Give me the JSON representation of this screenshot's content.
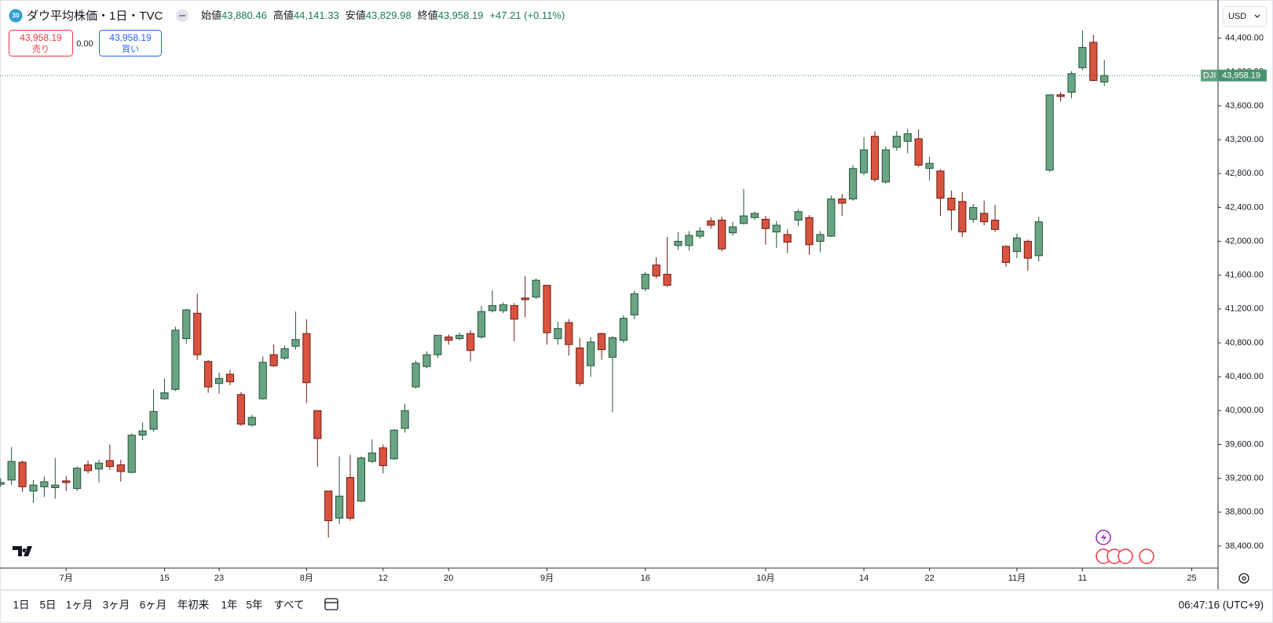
{
  "header": {
    "badge": "30",
    "title": "ダウ平均株価・1日・TVC",
    "ohlc": [
      {
        "label": "始値",
        "value": "43,880.46"
      },
      {
        "label": "高値",
        "value": "44,141.33"
      },
      {
        "label": "安値",
        "value": "43,829.98"
      },
      {
        "label": "終値",
        "value": "43,958.19"
      }
    ],
    "change": "+47.21 (+0.11%)"
  },
  "trade_panel": {
    "sell_price": "43,958.19",
    "sell_label": "売り",
    "spread": "0.00",
    "buy_price": "43,958.19",
    "buy_label": "買い"
  },
  "currency": "USD",
  "toolbar": {
    "ranges": [
      "1日",
      "5日",
      "1ヶ月",
      "3ヶ月",
      "6ヶ月",
      "年初来",
      "1年",
      "5年",
      "すべて"
    ],
    "clock": "06:47:16 (UTC+9)"
  },
  "chart_data": {
    "type": "candlestick",
    "up_color": "#6aa583",
    "down_color": "#d9533f",
    "grid": false,
    "last_price": {
      "symbol": "DJI",
      "value": 43958.19,
      "label": "43,958.19"
    },
    "ylim": [
      38140,
      44850
    ],
    "yticks": [
      {
        "value": 38400,
        "label": "38,400.00"
      },
      {
        "value": 38800,
        "label": "38,800.00"
      },
      {
        "value": 39200,
        "label": "39,200.00"
      },
      {
        "value": 39600,
        "label": "39,600.00"
      },
      {
        "value": 40000,
        "label": "40,000.00"
      },
      {
        "value": 40400,
        "label": "40,400.00"
      },
      {
        "value": 40800,
        "label": "40,800.00"
      },
      {
        "value": 41200,
        "label": "41,200.00"
      },
      {
        "value": 41600,
        "label": "41,600.00"
      },
      {
        "value": 42000,
        "label": "42,000.00"
      },
      {
        "value": 42400,
        "label": "42,400.00"
      },
      {
        "value": 42800,
        "label": "42,800.00"
      },
      {
        "value": 43200,
        "label": "43,200.00"
      },
      {
        "value": 43600,
        "label": "43,600.00"
      },
      {
        "value": 44000,
        "label": "44,000.00"
      },
      {
        "value": 44400,
        "label": "44,400.00"
      }
    ],
    "categories": [
      null,
      null,
      null,
      null,
      null,
      null,
      "7月",
      null,
      null,
      null,
      null,
      null,
      null,
      null,
      null,
      "15",
      null,
      null,
      null,
      null,
      "23",
      null,
      null,
      null,
      null,
      null,
      null,
      null,
      "8月",
      null,
      null,
      null,
      null,
      null,
      null,
      "12",
      null,
      null,
      null,
      null,
      null,
      "20",
      null,
      null,
      null,
      null,
      null,
      null,
      null,
      null,
      "9月",
      null,
      null,
      null,
      null,
      null,
      null,
      null,
      null,
      "16",
      null,
      null,
      null,
      null,
      null,
      null,
      null,
      null,
      null,
      null,
      "10月",
      null,
      null,
      null,
      null,
      null,
      null,
      null,
      null,
      "14",
      null,
      null,
      null,
      null,
      null,
      "22",
      null,
      null,
      null,
      null,
      null,
      null,
      null,
      "11月",
      null,
      null,
      null,
      null,
      null,
      "11",
      null,
      null,
      null,
      null,
      null,
      null,
      null,
      null,
      null,
      "25"
    ],
    "open": [
      39130,
      39180,
      39390,
      39050,
      39100,
      39090,
      39170,
      39080,
      39360,
      39310,
      39410,
      39360,
      39270,
      39710,
      39780,
      40140,
      40250,
      40850,
      41150,
      40580,
      40320,
      40430,
      40190,
      39830,
      40140,
      40660,
      40620,
      40760,
      40910,
      40000,
      39050,
      38730,
      39210,
      38930,
      39400,
      39560,
      39430,
      39790,
      40280,
      40520,
      40660,
      40870,
      40850,
      40910,
      40870,
      41180,
      41180,
      41240,
      41330,
      41340,
      41480,
      40850,
      41040,
      40740,
      40530,
      40910,
      40630,
      40830,
      41130,
      41440,
      41720,
      41610,
      41950,
      41950,
      42060,
      42240,
      42250,
      42100,
      42210,
      42280,
      42260,
      42110,
      42080,
      42250,
      42280,
      42000,
      42060,
      42500,
      42500,
      42810,
      43240,
      42700,
      43110,
      43180,
      43210,
      42860,
      42830,
      42510,
      42470,
      42260,
      42330,
      42250,
      41940,
      41880,
      42000,
      41830,
      42840,
      43730,
      43760,
      44050,
      44350,
      43880.46,
      null,
      null,
      null,
      null,
      null,
      null,
      null,
      null
    ],
    "high": [
      39200,
      39570,
      39410,
      39180,
      39220,
      39440,
      39230,
      39340,
      39410,
      39420,
      39600,
      39420,
      39730,
      39860,
      40250,
      40380,
      40990,
      41200,
      41380,
      40600,
      40450,
      40480,
      40220,
      39950,
      40640,
      40780,
      40770,
      41170,
      41080,
      40000,
      39050,
      39460,
      39480,
      39460,
      39660,
      39600,
      39780,
      40080,
      40590,
      40700,
      40890,
      40900,
      40920,
      40950,
      41240,
      41420,
      41280,
      41270,
      41590,
      41560,
      41480,
      41050,
      41080,
      40860,
      40870,
      40920,
      40880,
      41130,
      41420,
      41640,
      41810,
      42050,
      42110,
      42120,
      42170,
      42280,
      42290,
      42230,
      42620,
      42350,
      42300,
      42240,
      42140,
      42380,
      42310,
      42120,
      42540,
      42560,
      42900,
      43230,
      43300,
      43120,
      43300,
      43330,
      43320,
      43000,
      42850,
      42600,
      42580,
      42440,
      42480,
      42430,
      41950,
      42090,
      42020,
      42290,
      43730,
      43760,
      44010,
      44490,
      44440,
      44141.33,
      null,
      null,
      null,
      null,
      null,
      null,
      null,
      null
    ],
    "low": [
      39100,
      39120,
      39040,
      38910,
      38980,
      38960,
      39050,
      39050,
      39260,
      39150,
      39300,
      39160,
      39260,
      39650,
      39750,
      40130,
      40230,
      40790,
      40600,
      40210,
      40200,
      40300,
      39820,
      39810,
      40130,
      40520,
      40600,
      40720,
      40090,
      39340,
      38500,
      38660,
      38700,
      38920,
      39380,
      39260,
      39420,
      39740,
      40260,
      40500,
      40620,
      40780,
      40830,
      40580,
      40850,
      41160,
      41150,
      40820,
      41100,
      41320,
      40780,
      40780,
      40650,
      40290,
      40400,
      40600,
      39980,
      40800,
      41080,
      41410,
      41560,
      41460,
      41900,
      41890,
      42030,
      42150,
      41880,
      42070,
      42200,
      42250,
      41960,
      41920,
      41860,
      42180,
      41840,
      41870,
      42050,
      42300,
      42480,
      42780,
      42700,
      42680,
      43070,
      43040,
      42880,
      42720,
      42300,
      42130,
      42050,
      42220,
      42190,
      42110,
      41700,
      41800,
      41650,
      41760,
      42820,
      43650,
      43690,
      44020,
      43890,
      43829.98,
      null,
      null,
      null,
      null,
      null,
      null,
      null,
      null
    ],
    "close": [
      39150,
      39400,
      39100,
      39120,
      39160,
      39120,
      39150,
      39320,
      39290,
      39380,
      39340,
      39280,
      39710,
      39760,
      39990,
      40210,
      40950,
      41190,
      40660,
      40280,
      40380,
      40340,
      39840,
      39920,
      40570,
      40530,
      40730,
      40840,
      40330,
      39670,
      38700,
      38990,
      38730,
      39440,
      39500,
      39350,
      39770,
      40000,
      40560,
      40660,
      40890,
      40830,
      40890,
      40710,
      41170,
      41240,
      41250,
      41080,
      41310,
      41540,
      40920,
      40970,
      40780,
      40320,
      40810,
      40720,
      40860,
      41090,
      41380,
      41610,
      41590,
      41480,
      42000,
      42070,
      42120,
      42190,
      41910,
      42170,
      42300,
      42330,
      42150,
      42190,
      41990,
      42350,
      41960,
      42080,
      42500,
      42450,
      42860,
      43080,
      42730,
      43080,
      43240,
      43270,
      42900,
      42920,
      42510,
      42370,
      42110,
      42400,
      42230,
      42140,
      41750,
      42040,
      41800,
      42230,
      43730,
      43710,
      43980,
      44290,
      43900,
      43958.19,
      null,
      null,
      null,
      null,
      null,
      null,
      null,
      null
    ]
  }
}
